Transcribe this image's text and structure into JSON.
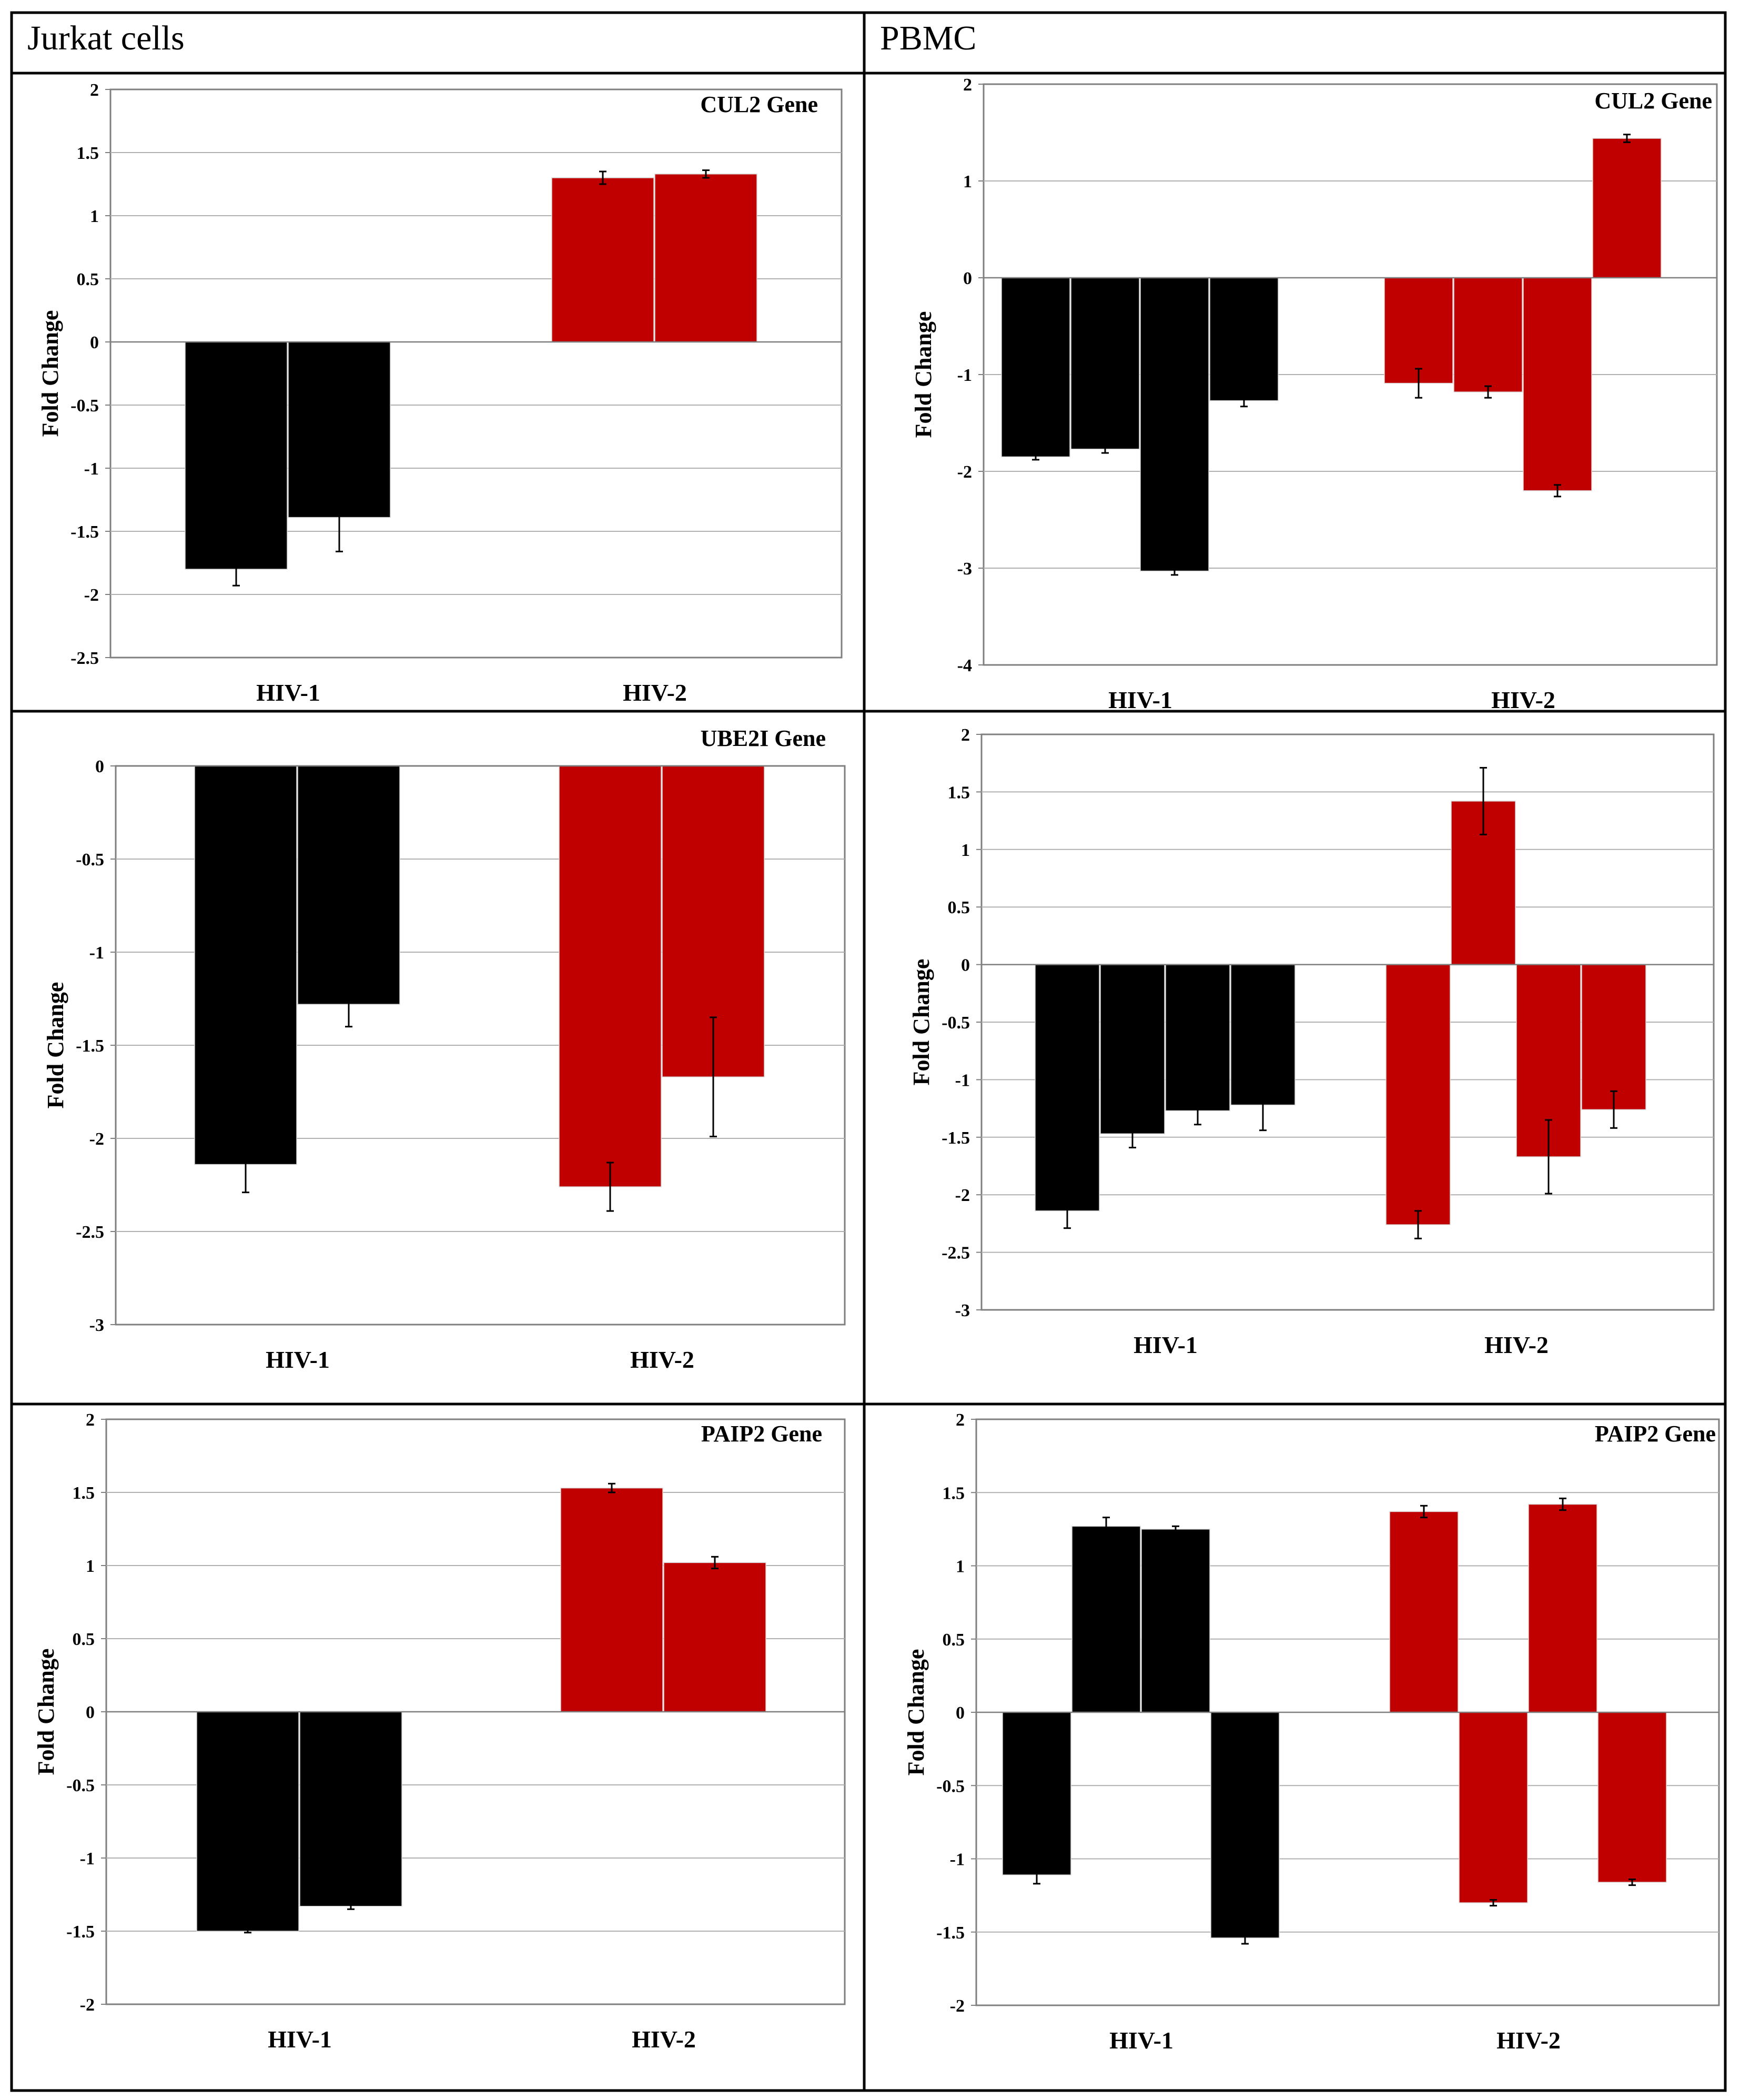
{
  "table": {
    "col_headers": [
      "Jurkat cells",
      "PBMC"
    ],
    "colors": {
      "hiv1": "#000000",
      "hiv2": "#c00000",
      "grid": "#b0b0b0",
      "border": "#000000"
    }
  },
  "chart_data": [
    {
      "type": "bar",
      "title": "CUL2 Gene",
      "ylabel": "Fold Change",
      "categories": [
        "HIV-1",
        "HIV-2"
      ],
      "ylim": [
        -2.5,
        2
      ],
      "yticks": [
        "2",
        "1.5",
        "1",
        "0.5",
        "0",
        "-0.5",
        "-1",
        "-1.5",
        "-2",
        "-2.5"
      ],
      "ytick_values": [
        2,
        1.5,
        1,
        0.5,
        0,
        -0.5,
        -1,
        -1.5,
        -2,
        -2.5
      ],
      "groups": [
        {
          "values": [
            -1.8,
            -1.39
          ],
          "errors": [
            0.13,
            0.27
          ]
        },
        {
          "values": [
            1.3,
            1.33
          ],
          "errors": [
            0.05,
            0.03
          ]
        }
      ]
    },
    {
      "type": "bar",
      "title": "CUL2 Gene",
      "ylabel": "Fold Change",
      "categories": [
        "HIV-1",
        "HIV-2"
      ],
      "ylim": [
        -4,
        2
      ],
      "yticks": [
        "2",
        "1",
        "0",
        "-1",
        "-2",
        "-3",
        "-4"
      ],
      "ytick_values": [
        2,
        1,
        0,
        -1,
        -2,
        -3,
        -4
      ],
      "groups": [
        {
          "values": [
            -1.85,
            -1.77,
            -3.03,
            -1.27
          ],
          "errors": [
            0.03,
            0.04,
            0.04,
            0.06
          ]
        },
        {
          "values": [
            -1.09,
            -1.18,
            -2.2,
            1.44
          ],
          "errors": [
            0.15,
            0.06,
            0.06,
            0.04
          ]
        }
      ]
    },
    {
      "type": "bar",
      "title": "UBE2I Gene",
      "ylabel": "Fold Change",
      "categories": [
        "HIV-1",
        "HIV-2"
      ],
      "ylim": [
        -3,
        0
      ],
      "yticks": [
        "0",
        "-0.5",
        "-1",
        "-1.5",
        "-2",
        "-2.5",
        "-3"
      ],
      "ytick_values": [
        0,
        -0.5,
        -1,
        -1.5,
        -2,
        -2.5,
        -3
      ],
      "groups": [
        {
          "values": [
            -2.14,
            -1.28
          ],
          "errors": [
            0.15,
            0.12
          ]
        },
        {
          "values": [
            -2.26,
            -1.67
          ],
          "errors": [
            0.13,
            0.32
          ]
        }
      ]
    },
    {
      "type": "bar",
      "title": "",
      "ylabel": "Fold Change",
      "categories": [
        "HIV-1",
        "HIV-2"
      ],
      "ylim": [
        -3,
        2
      ],
      "yticks": [
        "2",
        "1.5",
        "1",
        "0.5",
        "0",
        "-0.5",
        "-1",
        "-1.5",
        "-2",
        "-2.5",
        "-3"
      ],
      "ytick_values": [
        2,
        1.5,
        1,
        0.5,
        0,
        -0.5,
        -1,
        -1.5,
        -2,
        -2.5,
        -3
      ],
      "groups": [
        {
          "values": [
            -2.14,
            -1.47,
            -1.27,
            -1.22
          ],
          "errors": [
            0.15,
            0.12,
            0.12,
            0.22
          ]
        },
        {
          "values": [
            -2.26,
            1.42,
            -1.67,
            -1.26
          ],
          "errors": [
            0.12,
            0.29,
            0.32,
            0.16
          ]
        }
      ]
    },
    {
      "type": "bar",
      "title": "PAIP2 Gene",
      "ylabel": "Fold Change",
      "categories": [
        "HIV-1",
        "HIV-2"
      ],
      "ylim": [
        -2,
        2
      ],
      "yticks": [
        "2",
        "1.5",
        "1",
        "0.5",
        "0",
        "-0.5",
        "-1",
        "-1.5",
        "-2"
      ],
      "ytick_values": [
        2,
        1.5,
        1,
        0.5,
        0,
        -0.5,
        -1,
        -1.5,
        -2
      ],
      "groups": [
        {
          "values": [
            -1.5,
            -1.33
          ],
          "errors": [
            0.01,
            0.02
          ]
        },
        {
          "values": [
            1.53,
            1.02
          ],
          "errors": [
            0.03,
            0.04
          ]
        }
      ]
    },
    {
      "type": "bar",
      "title": "PAIP2 Gene",
      "ylabel": "Fold Change",
      "categories": [
        "HIV-1",
        "HIV-2"
      ],
      "ylim": [
        -2,
        2
      ],
      "yticks": [
        "2",
        "1.5",
        "1",
        "0.5",
        "0",
        "-0.5",
        "-1",
        "-1.5",
        "-2"
      ],
      "ytick_values": [
        2,
        1.5,
        1,
        0.5,
        0,
        -0.5,
        -1,
        -1.5,
        -2
      ],
      "groups": [
        {
          "values": [
            -1.11,
            1.27,
            1.25,
            -1.54
          ],
          "errors": [
            0.06,
            0.06,
            0.02,
            0.04
          ]
        },
        {
          "values": [
            1.37,
            -1.3,
            1.42,
            -1.16
          ],
          "errors": [
            0.04,
            0.02,
            0.04,
            0.02
          ]
        }
      ]
    }
  ]
}
